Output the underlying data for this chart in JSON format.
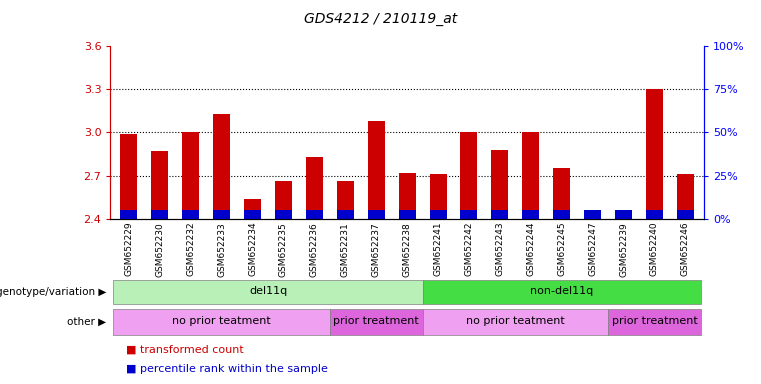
{
  "title": "GDS4212 / 210119_at",
  "samples": [
    "GSM652229",
    "GSM652230",
    "GSM652232",
    "GSM652233",
    "GSM652234",
    "GSM652235",
    "GSM652236",
    "GSM652231",
    "GSM652237",
    "GSM652238",
    "GSM652241",
    "GSM652242",
    "GSM652243",
    "GSM652244",
    "GSM652245",
    "GSM652247",
    "GSM652239",
    "GSM652240",
    "GSM652246"
  ],
  "red_values": [
    2.99,
    2.87,
    3.0,
    3.13,
    2.54,
    2.66,
    2.83,
    2.66,
    3.08,
    2.72,
    2.71,
    3.0,
    2.88,
    3.0,
    2.75,
    2.42,
    2.43,
    3.3,
    2.71
  ],
  "blue_fractions": [
    0.1,
    0.1,
    0.1,
    0.1,
    0.04,
    0.06,
    0.08,
    0.08,
    0.1,
    0.08,
    0.1,
    0.1,
    0.1,
    0.08,
    0.08,
    0.02,
    0.02,
    0.1,
    0.08
  ],
  "ymin": 2.4,
  "ymax": 3.6,
  "yticks_red": [
    2.4,
    2.7,
    3.0,
    3.3,
    3.6
  ],
  "yticks_blue_pct": [
    0,
    25,
    50,
    75,
    100
  ],
  "dotted_lines": [
    2.7,
    3.0,
    3.3
  ],
  "genotype_groups": [
    {
      "label": "del11q",
      "start": 0,
      "end": 10,
      "color": "#b8f0b8"
    },
    {
      "label": "non-del11q",
      "start": 10,
      "end": 19,
      "color": "#44dd44"
    }
  ],
  "other_groups": [
    {
      "label": "no prior teatment",
      "start": 0,
      "end": 7,
      "color": "#f0a0f0"
    },
    {
      "label": "prior treatment",
      "start": 7,
      "end": 10,
      "color": "#dd66dd"
    },
    {
      "label": "no prior teatment",
      "start": 10,
      "end": 16,
      "color": "#f0a0f0"
    },
    {
      "label": "prior treatment",
      "start": 16,
      "end": 19,
      "color": "#dd66dd"
    }
  ],
  "bar_width": 0.55,
  "red_color": "#cc0000",
  "blue_color": "#0000cc",
  "legend_red": "transformed count",
  "legend_blue": "percentile rank within the sample",
  "genotype_label": "genotype/variation",
  "other_label": "other",
  "background_gray": "#d8d8d8"
}
